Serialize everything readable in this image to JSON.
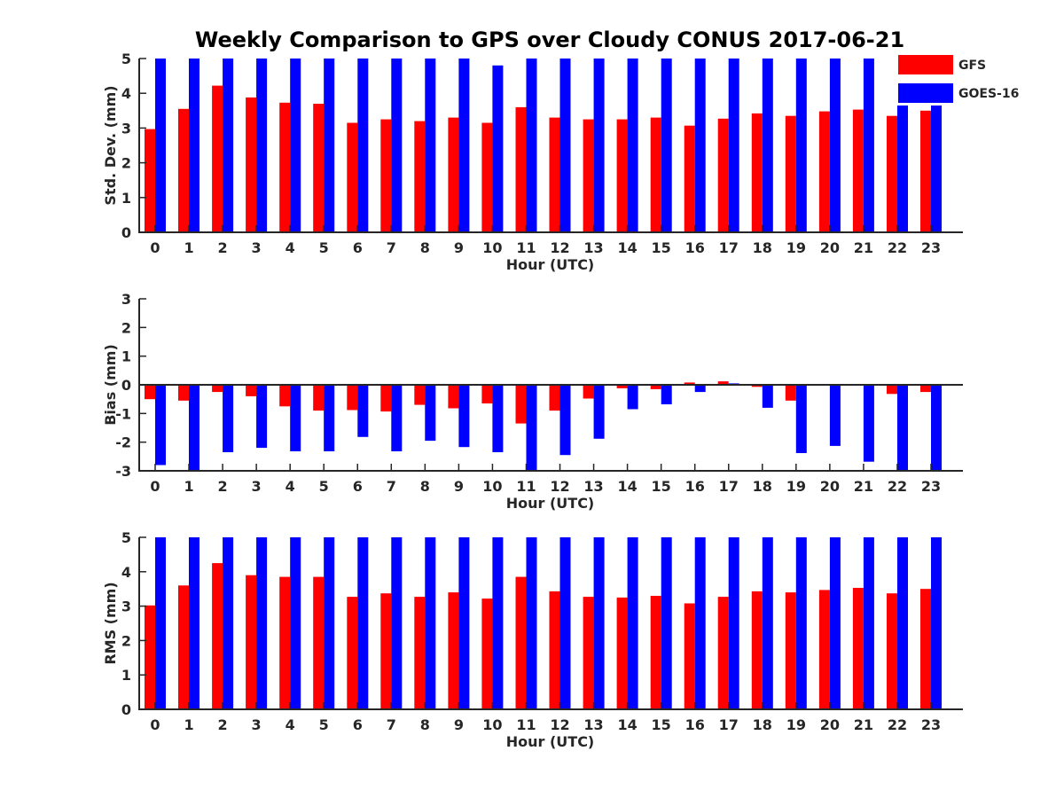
{
  "title": "Weekly Comparison to GPS over Cloudy CONUS 2017-06-21",
  "legend": [
    {
      "name": "GFS",
      "color": "#ff0000"
    },
    {
      "name": "GOES-16",
      "color": "#0000ff"
    }
  ],
  "chart_data": [
    {
      "type": "bar",
      "xlabel": "Hour (UTC)",
      "ylabel": "Std. Dev. (mm)",
      "ylim": [
        0,
        5
      ],
      "yticks": [
        0,
        1,
        2,
        3,
        4,
        5
      ],
      "categories": [
        "0",
        "1",
        "2",
        "3",
        "4",
        "5",
        "6",
        "7",
        "8",
        "9",
        "10",
        "11",
        "12",
        "13",
        "14",
        "15",
        "16",
        "17",
        "18",
        "19",
        "20",
        "21",
        "22",
        "23"
      ],
      "series": [
        {
          "name": "GFS",
          "color": "#ff0000",
          "values": [
            2.97,
            3.55,
            4.22,
            3.88,
            3.73,
            3.7,
            3.15,
            3.25,
            3.2,
            3.3,
            3.15,
            3.6,
            3.3,
            3.25,
            3.25,
            3.3,
            3.07,
            3.27,
            3.42,
            3.35,
            3.48,
            3.53,
            3.35,
            3.5
          ]
        },
        {
          "name": "GOES-16",
          "color": "#0000ff",
          "values": [
            5.0,
            5.0,
            5.0,
            5.0,
            5.0,
            5.0,
            5.0,
            5.0,
            5.0,
            5.0,
            4.8,
            5.0,
            5.0,
            5.0,
            5.0,
            5.0,
            5.0,
            5.0,
            5.0,
            5.0,
            5.0,
            5.0,
            5.0,
            5.0
          ]
        }
      ],
      "legend": "top-right",
      "grid": false
    },
    {
      "type": "bar",
      "xlabel": "Hour (UTC)",
      "ylabel": "Bias (mm)",
      "ylim": [
        -3,
        3
      ],
      "yticks": [
        -3,
        -2,
        -1,
        0,
        1,
        2,
        3
      ],
      "zero_line": true,
      "categories": [
        "0",
        "1",
        "2",
        "3",
        "4",
        "5",
        "6",
        "7",
        "8",
        "9",
        "10",
        "11",
        "12",
        "13",
        "14",
        "15",
        "16",
        "17",
        "18",
        "19",
        "20",
        "21",
        "22",
        "23"
      ],
      "series": [
        {
          "name": "GFS",
          "color": "#ff0000",
          "values": [
            -0.5,
            -0.55,
            -0.25,
            -0.4,
            -0.75,
            -0.9,
            -0.88,
            -0.93,
            -0.7,
            -0.82,
            -0.65,
            -1.35,
            -0.9,
            -0.48,
            -0.12,
            -0.15,
            0.08,
            0.12,
            -0.07,
            -0.55,
            -0.02,
            0.0,
            -0.32,
            -0.25
          ]
        },
        {
          "name": "GOES-16",
          "color": "#0000ff",
          "values": [
            -2.8,
            -3.0,
            -2.35,
            -2.2,
            -2.32,
            -2.32,
            -1.82,
            -2.32,
            -1.95,
            -2.17,
            -2.35,
            -3.0,
            -2.45,
            -1.88,
            -0.85,
            -0.68,
            -0.25,
            0.05,
            -0.8,
            -2.38,
            -2.13,
            -2.68,
            -3.0,
            -3.0
          ]
        }
      ],
      "grid": false
    },
    {
      "type": "bar",
      "xlabel": "Hour (UTC)",
      "ylabel": "RMS (mm)",
      "ylim": [
        0,
        5
      ],
      "yticks": [
        0,
        1,
        2,
        3,
        4,
        5
      ],
      "categories": [
        "0",
        "1",
        "2",
        "3",
        "4",
        "5",
        "6",
        "7",
        "8",
        "9",
        "10",
        "11",
        "12",
        "13",
        "14",
        "15",
        "16",
        "17",
        "18",
        "19",
        "20",
        "21",
        "22",
        "23"
      ],
      "series": [
        {
          "name": "GFS",
          "color": "#ff0000",
          "values": [
            3.02,
            3.6,
            4.25,
            3.9,
            3.85,
            3.85,
            3.27,
            3.37,
            3.27,
            3.4,
            3.22,
            3.85,
            3.43,
            3.27,
            3.25,
            3.3,
            3.08,
            3.27,
            3.43,
            3.4,
            3.47,
            3.53,
            3.37,
            3.5
          ]
        },
        {
          "name": "GOES-16",
          "color": "#0000ff",
          "values": [
            5.0,
            5.0,
            5.0,
            5.0,
            5.0,
            5.0,
            5.0,
            5.0,
            5.0,
            5.0,
            5.0,
            5.0,
            5.0,
            5.0,
            5.0,
            5.0,
            5.0,
            5.0,
            5.0,
            5.0,
            5.0,
            5.0,
            5.0,
            5.0
          ]
        }
      ],
      "grid": false
    }
  ]
}
